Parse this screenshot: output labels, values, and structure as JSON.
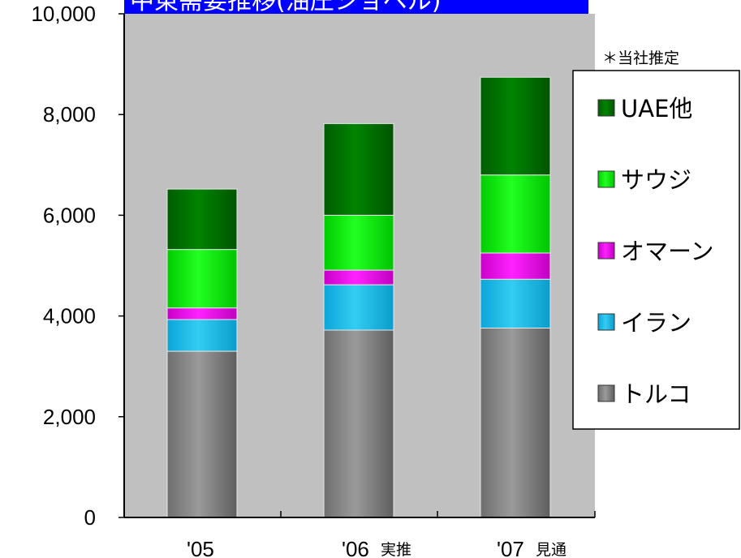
{
  "chart_data": {
    "type": "bar",
    "stacked": true,
    "title": "中東需要推移(油圧ショベル)",
    "annotation": "＊当社推定",
    "categories": [
      "'05",
      "'06",
      "'07"
    ],
    "category_notes": [
      "",
      "実推",
      "見通"
    ],
    "ylim": [
      0,
      10000
    ],
    "yticks": [
      "0",
      "2,000",
      "4,000",
      "6,000",
      "8,000",
      "10,000"
    ],
    "grid": false,
    "legend_position": "right",
    "series": [
      {
        "name": "トルコ",
        "values": [
          3300,
          3720,
          3760
        ],
        "color": "#808080"
      },
      {
        "name": "イラン",
        "values": [
          630,
          900,
          970
        ],
        "color": "#1ab8e8"
      },
      {
        "name": "オマーン",
        "values": [
          230,
          290,
          520
        ],
        "color": "#e000e0"
      },
      {
        "name": "サウジ",
        "values": [
          1160,
          1090,
          1550
        ],
        "color": "#00e600"
      },
      {
        "name": "UAE他",
        "values": [
          1200,
          1820,
          1940
        ],
        "color": "#007200"
      }
    ],
    "plot_background": "#c0c0c0",
    "title_background": "#0000ff"
  }
}
